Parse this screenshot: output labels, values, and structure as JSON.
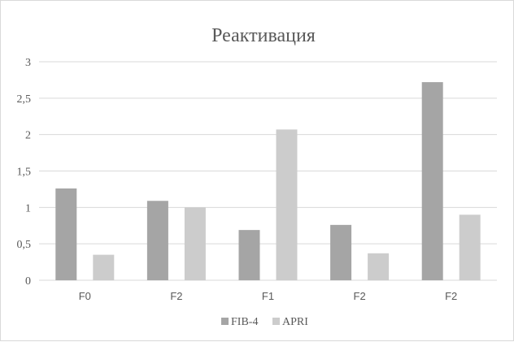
{
  "chart_data": {
    "type": "bar",
    "title": "Реактивация",
    "categories": [
      "F0",
      "F2",
      "F1",
      "F2",
      "F2"
    ],
    "series": [
      {
        "name": "FIB-4",
        "values": [
          1.26,
          1.09,
          0.69,
          0.76,
          2.72
        ],
        "color": "#a5a5a5"
      },
      {
        "name": "APRI",
        "values": [
          0.35,
          1.0,
          2.07,
          0.37,
          0.9
        ],
        "color": "#cccccc"
      }
    ],
    "ylim": [
      0,
      3
    ],
    "yticks": [
      "0",
      "0,5",
      "1",
      "1,5",
      "2",
      "2,5",
      "3"
    ],
    "grid": true,
    "legend_position": "bottom"
  }
}
